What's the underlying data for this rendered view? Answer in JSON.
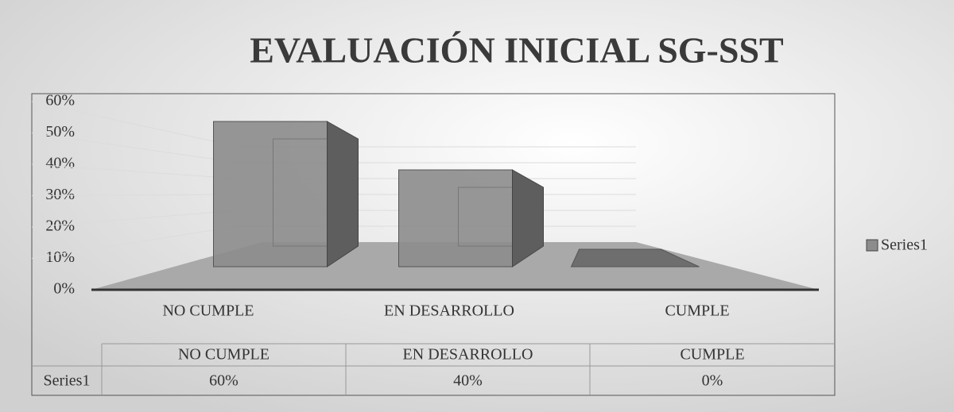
{
  "chart_data": {
    "type": "bar",
    "title": "EVALUACIÓN INICIAL SG-SST",
    "categories": [
      "NO CUMPLE",
      "EN DESARROLLO",
      "CUMPLE"
    ],
    "series": [
      {
        "name": "Series1",
        "color": "#8c8c8c",
        "values": [
          60,
          40,
          0
        ],
        "value_labels": [
          "60%",
          "40%",
          "0%"
        ]
      }
    ],
    "ylim": [
      0,
      60
    ],
    "yticks": [
      {
        "value": 0,
        "label": "0%"
      },
      {
        "value": 10,
        "label": "10%"
      },
      {
        "value": 20,
        "label": "20%"
      },
      {
        "value": 30,
        "label": "30%"
      },
      {
        "value": 40,
        "label": "40%"
      },
      {
        "value": 50,
        "label": "50%"
      },
      {
        "value": 60,
        "label": "60%"
      }
    ],
    "grid": true,
    "legend": "right",
    "data_table": true
  }
}
